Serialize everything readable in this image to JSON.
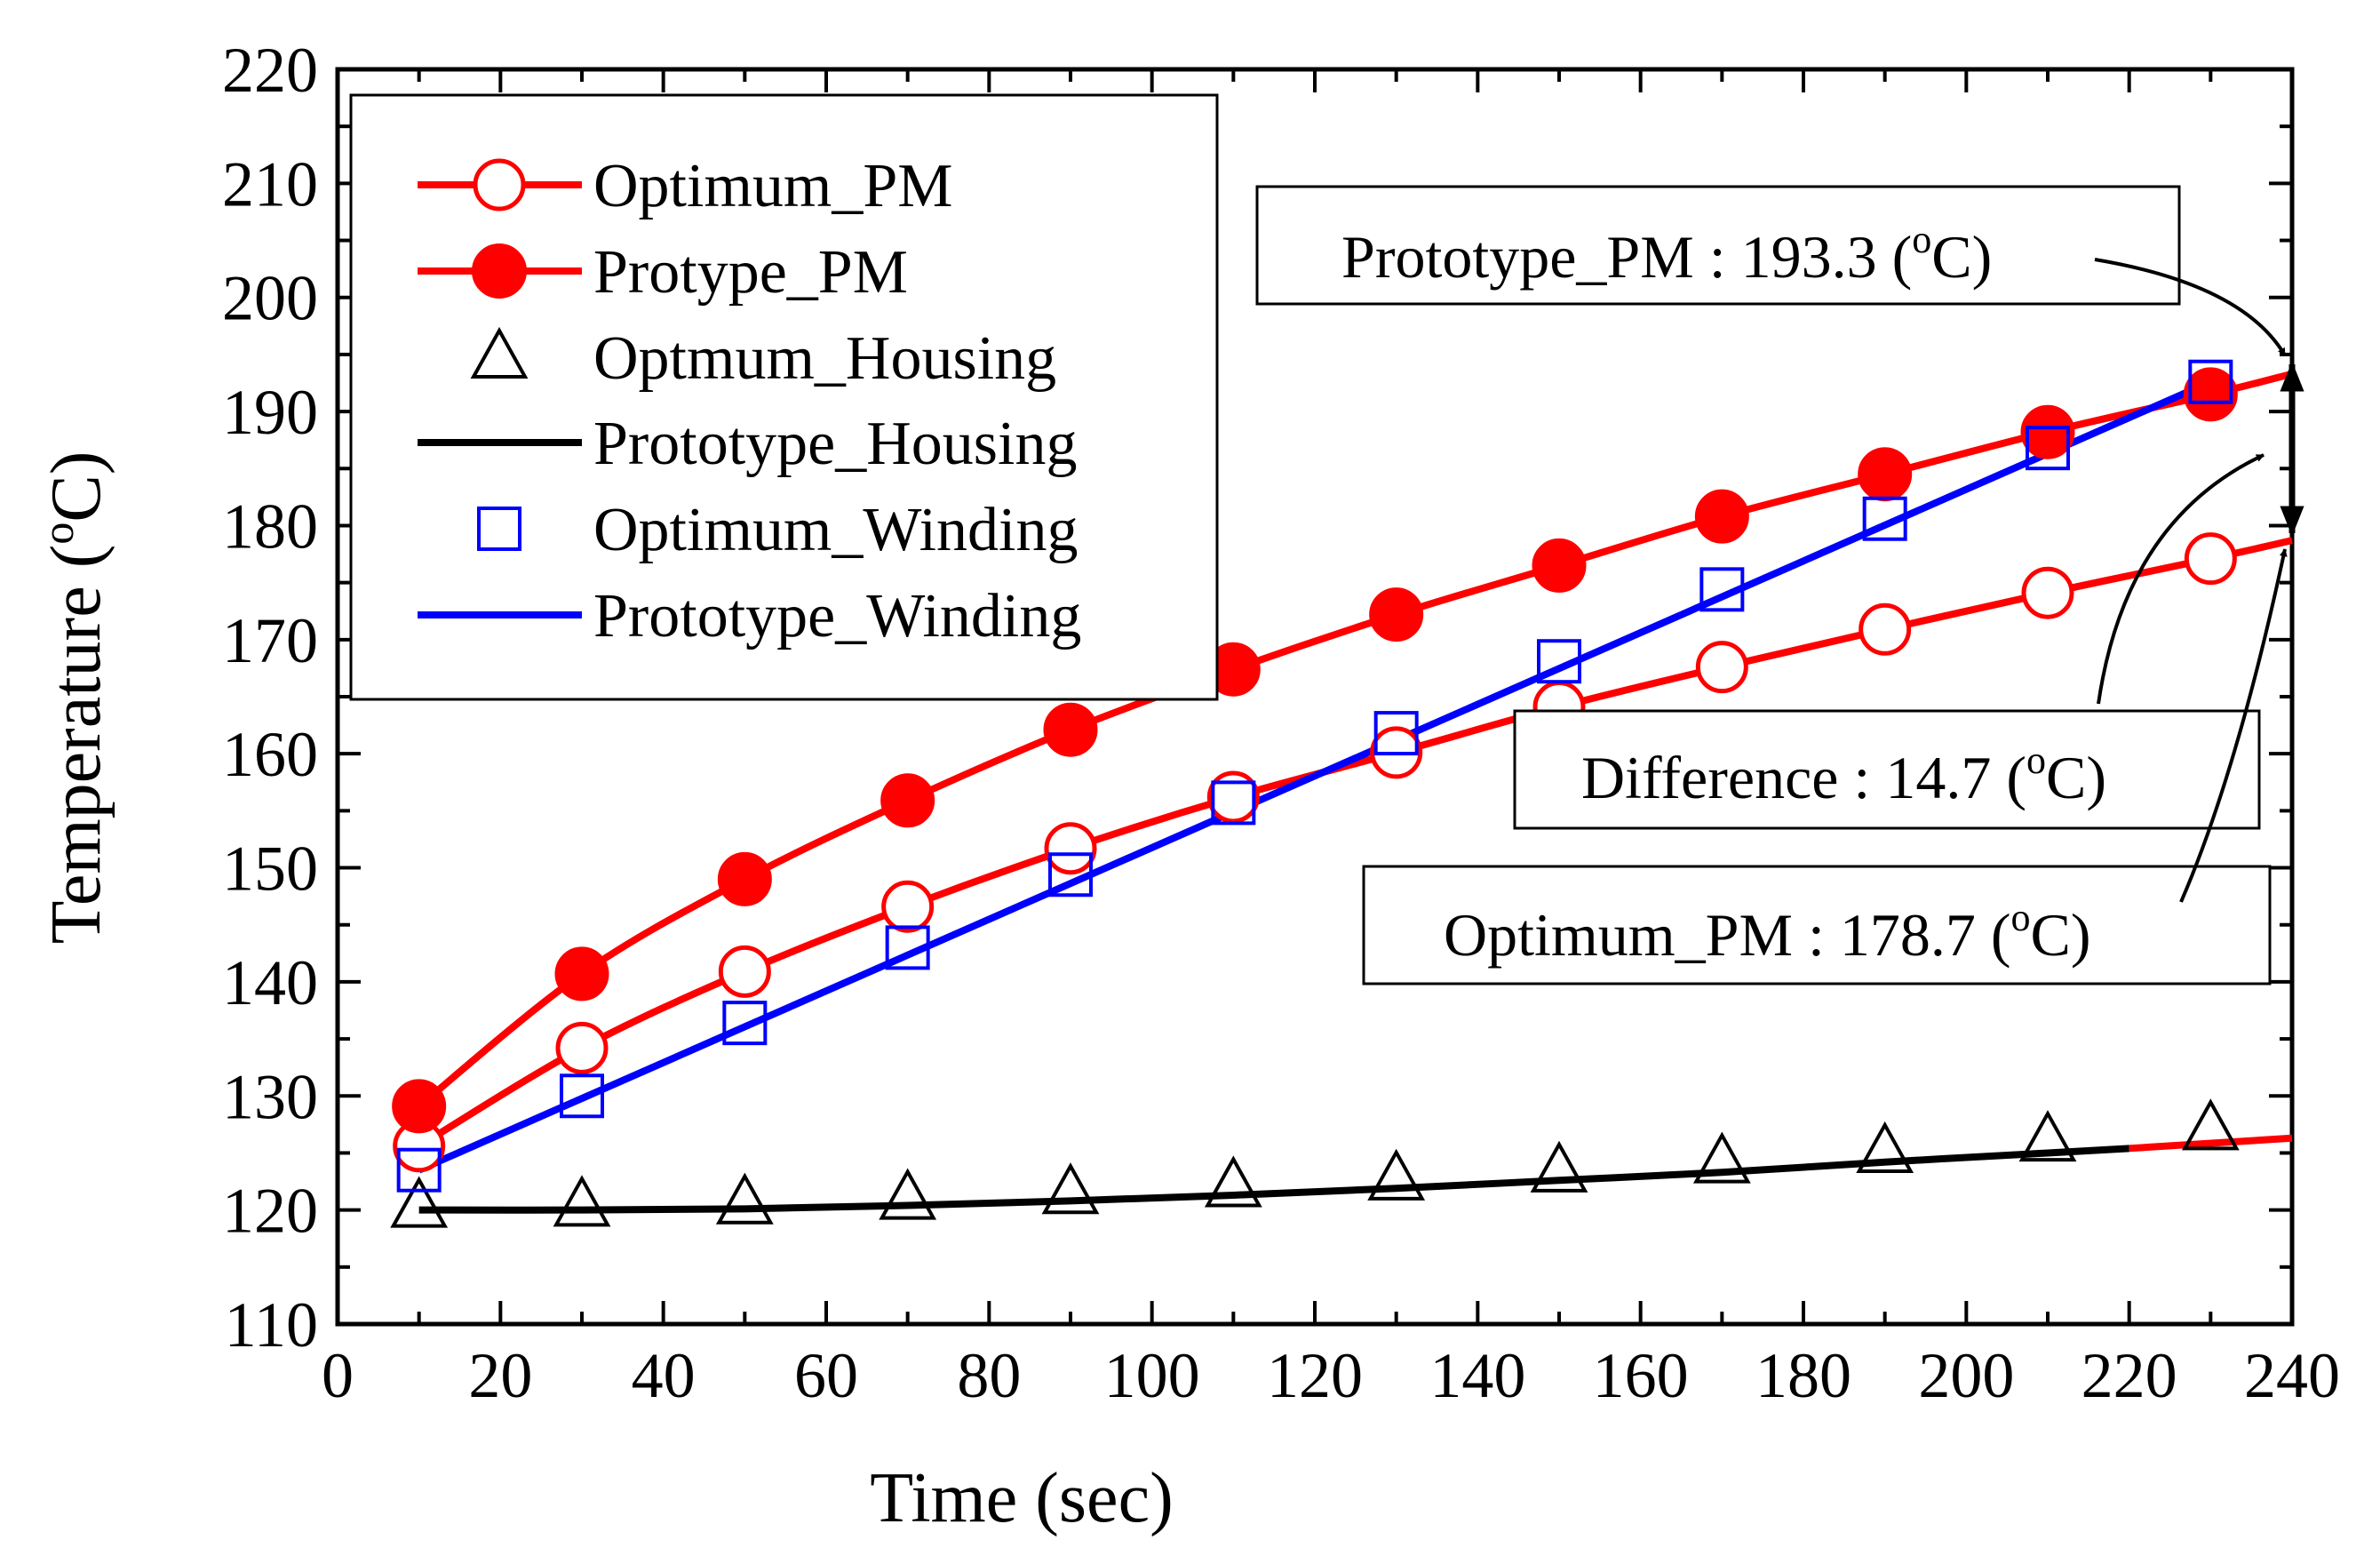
{
  "chart_data": {
    "type": "line",
    "xlabel": "Time (sec)",
    "ylabel_main": "Temperature (",
    "ylabel_sup": "o",
    "ylabel_end": "C)",
    "xlim": [
      0,
      240
    ],
    "ylim": [
      110,
      220
    ],
    "xticks": [
      0,
      20,
      40,
      60,
      80,
      100,
      120,
      140,
      160,
      180,
      200,
      220,
      240
    ],
    "yticks": [
      110,
      120,
      130,
      140,
      150,
      160,
      170,
      180,
      190,
      200,
      210,
      220
    ],
    "grid": false,
    "legend_position": "top-left",
    "series": [
      {
        "name": "Optimum_PM",
        "color": "#ff0000",
        "line": true,
        "marker": "circle-open",
        "x": [
          10,
          30,
          50,
          70,
          90,
          110,
          130,
          150,
          170,
          190,
          210,
          230
        ],
        "y": [
          125.6,
          134.2,
          140.9,
          146.6,
          151.7,
          156.2,
          160.1,
          164.1,
          167.6,
          170.9,
          174.1,
          177.1
        ],
        "line_x": [
          10,
          30,
          50,
          70,
          90,
          110,
          130,
          150,
          170,
          190,
          210,
          230,
          240
        ],
        "line_y": [
          125.6,
          134.2,
          140.9,
          146.6,
          151.7,
          156.2,
          160.1,
          164.1,
          167.6,
          170.9,
          174.1,
          177.1,
          178.7
        ]
      },
      {
        "name": "Protype_PM",
        "color": "#ff0000",
        "line": true,
        "marker": "circle-filled",
        "x": [
          10,
          30,
          50,
          70,
          90,
          110,
          130,
          150,
          170,
          190,
          210,
          230
        ],
        "y": [
          129.1,
          140.7,
          149.0,
          155.9,
          162.1,
          167.4,
          172.2,
          176.5,
          180.8,
          184.5,
          188.2,
          191.5
        ],
        "line_x": [
          10,
          30,
          50,
          70,
          90,
          110,
          130,
          150,
          170,
          190,
          210,
          230,
          240
        ],
        "line_y": [
          129.1,
          140.7,
          149.0,
          155.9,
          162.1,
          167.4,
          172.2,
          176.5,
          180.8,
          184.5,
          188.2,
          191.5,
          193.3
        ]
      },
      {
        "name": "Optmum_Housing",
        "color": "#000000",
        "line": false,
        "marker": "triangle-open",
        "x": [
          10,
          30,
          50,
          70,
          90,
          110,
          130,
          150,
          170,
          190,
          210,
          230
        ],
        "y": [
          120.0,
          120.1,
          120.3,
          120.7,
          121.2,
          121.8,
          122.4,
          123.1,
          123.9,
          124.8,
          125.8,
          126.8
        ]
      },
      {
        "name": "Prototype_Housing",
        "color": "#000000",
        "line": true,
        "marker": "none",
        "line_x": [
          10,
          30,
          50,
          70,
          90,
          110,
          130,
          150,
          170,
          190,
          210,
          220
        ],
        "line_y": [
          120.0,
          120.0,
          120.1,
          120.4,
          120.8,
          121.3,
          121.9,
          122.6,
          123.3,
          124.2,
          125.0,
          125.4
        ]
      },
      {
        "name": "Optimum_Winding",
        "color": "#0000ff",
        "line": false,
        "marker": "square-open",
        "x": [
          10,
          30,
          50,
          70,
          90,
          110,
          130,
          150,
          170,
          190,
          210,
          230
        ],
        "y": [
          123.5,
          130.0,
          136.4,
          143.0,
          149.4,
          155.7,
          161.8,
          168.1,
          174.4,
          180.6,
          186.8,
          192.6
        ]
      },
      {
        "name": "Prototype_Winding",
        "color": "#0000ff",
        "line": true,
        "marker": "none",
        "line_x": [
          10,
          230
        ],
        "line_y": [
          123.5,
          192.6
        ]
      }
    ],
    "extra_segments": [
      {
        "color": "#ff0000",
        "x": [
          220,
          240
        ],
        "y": [
          125.4,
          126.3
        ]
      }
    ],
    "annotations": [
      {
        "label": "Prototype_PM : 193.3 (",
        "sup": "o",
        "end": "C)"
      },
      {
        "label": "Difference : 14.7 (",
        "sup": "o",
        "end": "C)"
      },
      {
        "label": "Optimum_PM : 178.7 (",
        "sup": "o",
        "end": "C)"
      }
    ]
  }
}
